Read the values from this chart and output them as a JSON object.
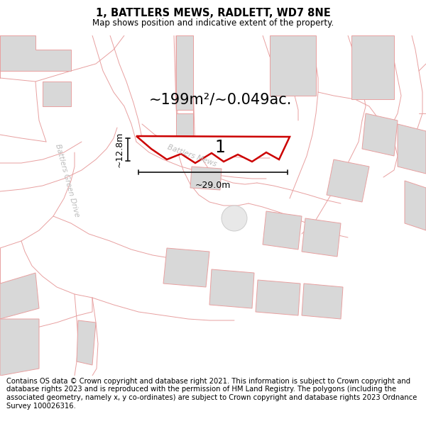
{
  "title": "1, BATTLERS MEWS, RADLETT, WD7 8NE",
  "subtitle": "Map shows position and indicative extent of the property.",
  "area_text": "~199m²/~0.049ac.",
  "label_number": "1",
  "dim_width": "~29.0m",
  "dim_height": "~12.8m",
  "road_label_1": "Battlers Green Drive",
  "road_label_2": "Battlers Mews",
  "footer_text": "Contains OS data © Crown copyright and database right 2021. This information is subject to Crown copyright and database rights 2023 and is reproduced with the permission of HM Land Registry. The polygons (including the associated geometry, namely x, y co-ordinates) are subject to Crown copyright and database rights 2023 Ordnance Survey 100026316.",
  "bg_map": "#ffffff",
  "plot_fill": "#ffffff",
  "plot_edge": "#cc0000",
  "building_fill": "#d8d8d8",
  "building_edge": "#e8a0a0",
  "street_line": "#e8a0a0",
  "dim_color": "#222222",
  "road_label_color": "#bbbbbb",
  "title_fontsize": 10.5,
  "subtitle_fontsize": 8.5,
  "area_fontsize": 15,
  "footer_fontsize": 7.2
}
